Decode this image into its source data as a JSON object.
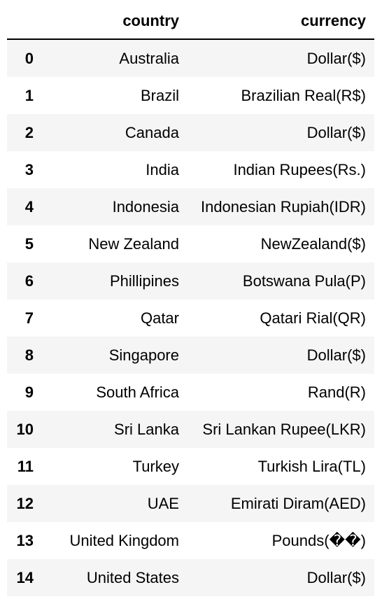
{
  "table": {
    "columns": {
      "index": "",
      "country": "country",
      "currency": "currency"
    },
    "rows": [
      {
        "index": "0",
        "country": "Australia",
        "currency": "Dollar($)"
      },
      {
        "index": "1",
        "country": "Brazil",
        "currency": "Brazilian Real(R$)"
      },
      {
        "index": "2",
        "country": "Canada",
        "currency": "Dollar($)"
      },
      {
        "index": "3",
        "country": "India",
        "currency": "Indian Rupees(Rs.)"
      },
      {
        "index": "4",
        "country": "Indonesia",
        "currency": "Indonesian Rupiah(IDR)"
      },
      {
        "index": "5",
        "country": "New Zealand",
        "currency": "NewZealand($)"
      },
      {
        "index": "6",
        "country": "Phillipines",
        "currency": "Botswana Pula(P)"
      },
      {
        "index": "7",
        "country": "Qatar",
        "currency": "Qatari Rial(QR)"
      },
      {
        "index": "8",
        "country": "Singapore",
        "currency": "Dollar($)"
      },
      {
        "index": "9",
        "country": "South Africa",
        "currency": "Rand(R)"
      },
      {
        "index": "10",
        "country": "Sri Lanka",
        "currency": "Sri Lankan Rupee(LKR)"
      },
      {
        "index": "11",
        "country": "Turkey",
        "currency": "Turkish Lira(TL)"
      },
      {
        "index": "12",
        "country": "UAE",
        "currency": "Emirati Diram(AED)"
      },
      {
        "index": "13",
        "country": "United Kingdom",
        "currency": "Pounds(��)"
      },
      {
        "index": "14",
        "country": "United States",
        "currency": "Dollar($)"
      }
    ]
  }
}
